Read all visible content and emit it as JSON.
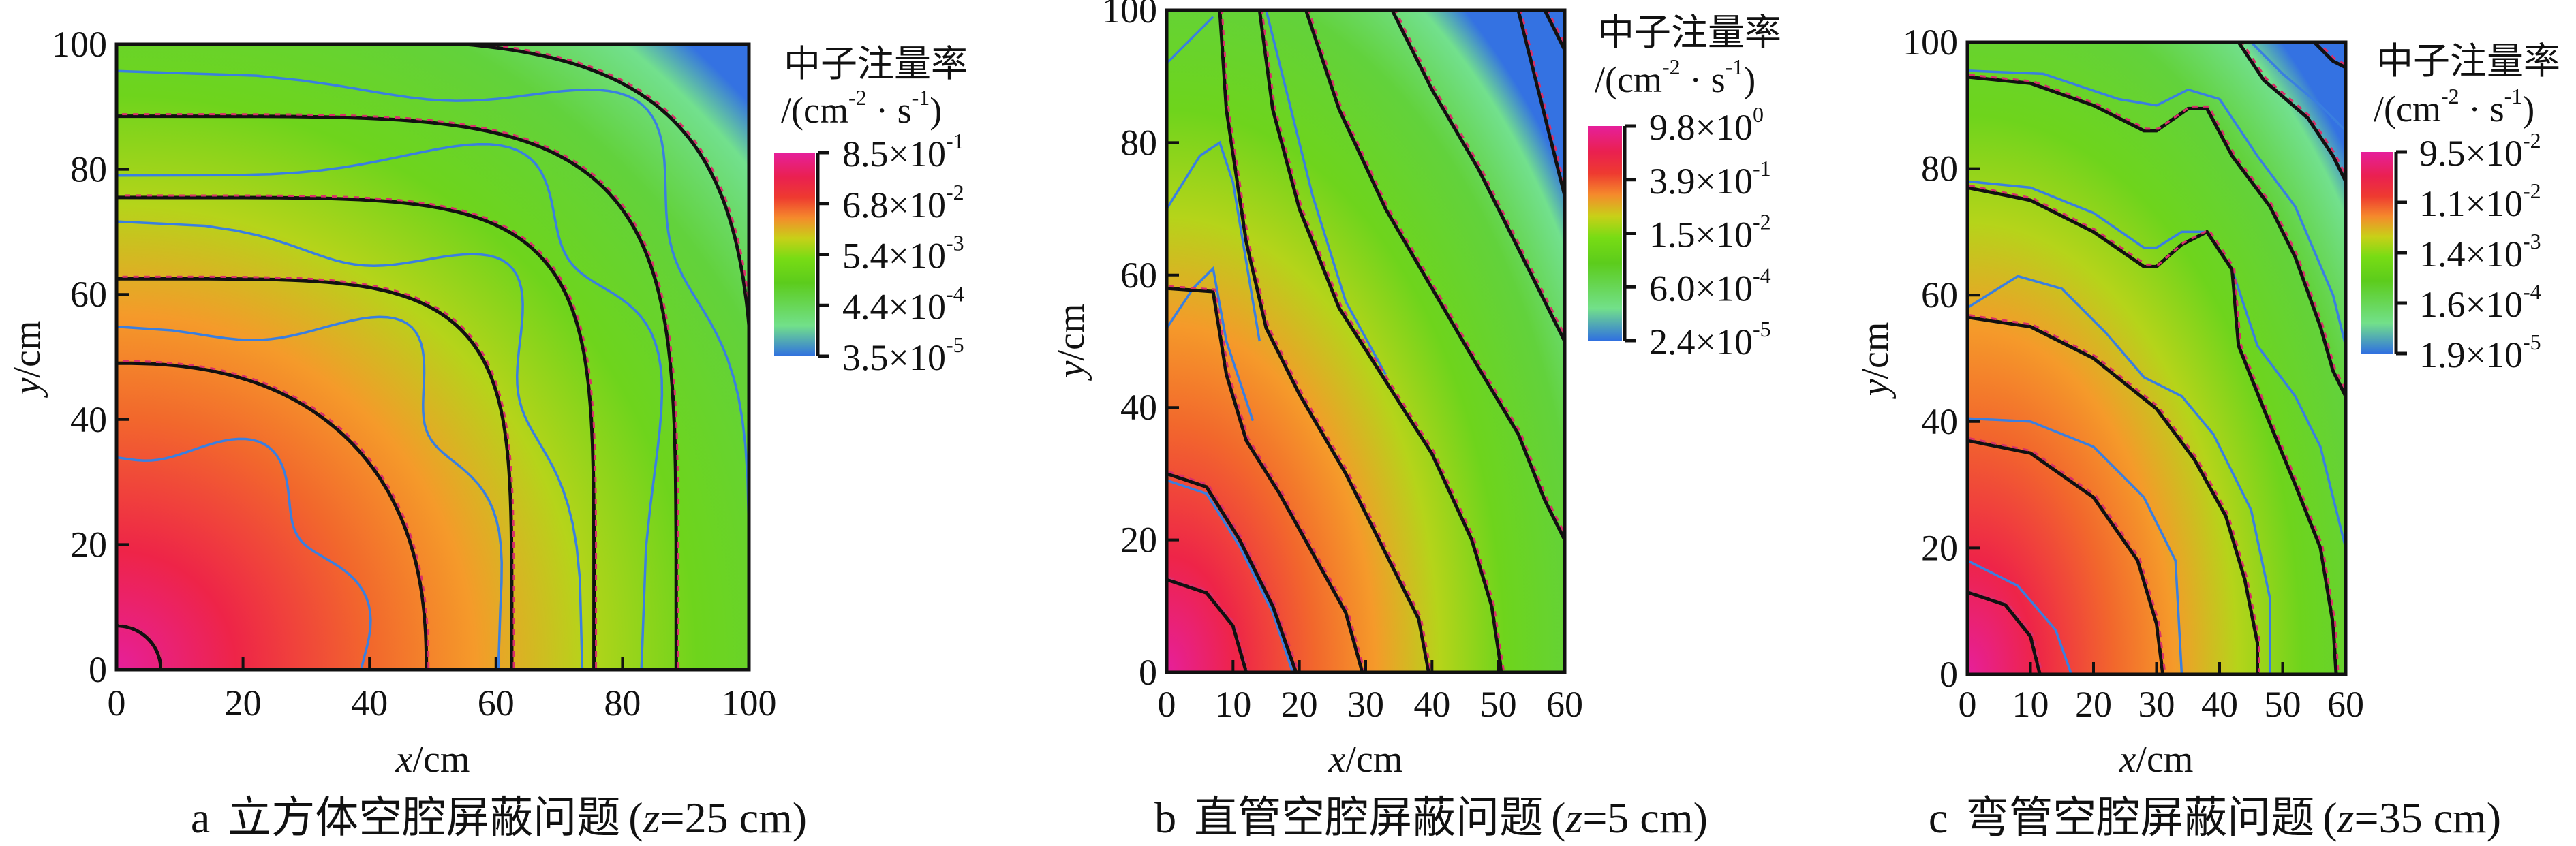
{
  "chart_data": [
    {
      "type": "heatmap",
      "panel": "a",
      "caption": {
        "letter": "a",
        "title": "立方体空腔屏蔽问题",
        "open": "(",
        "var": "z",
        "rest": "=25 cm)"
      },
      "xlabel": {
        "var": "x",
        "unit": "/cm"
      },
      "ylabel": {
        "var": "y",
        "unit": "/cm"
      },
      "xlim": [
        0,
        100
      ],
      "ylim": [
        0,
        100
      ],
      "xticks": [
        "0",
        "20",
        "40",
        "60",
        "80",
        "100"
      ],
      "yticks": [
        "0",
        "20",
        "40",
        "60",
        "80",
        "100"
      ],
      "colorbar": {
        "title": "中子注量率",
        "unit": {
          "pre": "/(cm",
          "e1": "-2",
          "mid": " · s",
          "e2": "-1",
          "post": ")"
        },
        "ticks": [
          {
            "m": "8.5×10",
            "e": "-1"
          },
          {
            "m": "6.8×10",
            "e": "-2"
          },
          {
            "m": "5.4×10",
            "e": "-3"
          },
          {
            "m": "4.4×10",
            "e": "-4"
          },
          {
            "m": "3.5×10",
            "e": "-5"
          }
        ]
      },
      "color_scale": [
        "#e61f9b",
        "#ee2448",
        "#f2682c",
        "#f59a2a",
        "#b5d41a",
        "#6ed41c",
        "#62d23c",
        "#72e08e",
        "#3472e2"
      ]
    },
    {
      "type": "heatmap",
      "panel": "b",
      "caption": {
        "letter": "b",
        "title": "直管空腔屏蔽问题",
        "open": "(",
        "var": "z",
        "rest": "=5 cm)"
      },
      "xlabel": {
        "var": "x",
        "unit": "/cm"
      },
      "ylabel": {
        "var": "y",
        "unit": "/cm"
      },
      "xlim": [
        0,
        60
      ],
      "ylim": [
        0,
        100
      ],
      "xticks": [
        "0",
        "10",
        "20",
        "30",
        "40",
        "50",
        "60"
      ],
      "yticks": [
        "0",
        "20",
        "40",
        "60",
        "80",
        "100"
      ],
      "colorbar": {
        "title": "中子注量率",
        "unit": {
          "pre": "/(cm",
          "e1": "-2",
          "mid": " · s",
          "e2": "-1",
          "post": ")"
        },
        "ticks": [
          {
            "m": "9.8×10",
            "e": "0"
          },
          {
            "m": "3.9×10",
            "e": "-1"
          },
          {
            "m": "1.5×10",
            "e": "-2"
          },
          {
            "m": "6.0×10",
            "e": "-4"
          },
          {
            "m": "2.4×10",
            "e": "-5"
          }
        ]
      },
      "color_scale": [
        "#e61f9b",
        "#ee2448",
        "#f2682c",
        "#f59a2a",
        "#b5d41a",
        "#6ed41c",
        "#62d23c",
        "#72e08e",
        "#3472e2"
      ]
    },
    {
      "type": "heatmap",
      "panel": "c",
      "caption": {
        "letter": "c",
        "title": "弯管空腔屏蔽问题",
        "open": "(",
        "var": "z",
        "rest": "=35 cm)"
      },
      "xlabel": {
        "var": "x",
        "unit": "/cm"
      },
      "ylabel": {
        "var": "y",
        "unit": "/cm"
      },
      "xlim": [
        0,
        60
      ],
      "ylim": [
        0,
        100
      ],
      "xticks": [
        "0",
        "10",
        "20",
        "30",
        "40",
        "50",
        "60"
      ],
      "yticks": [
        "0",
        "20",
        "40",
        "60",
        "80",
        "100"
      ],
      "colorbar": {
        "title": "中子注量率",
        "unit": {
          "pre": "/(cm",
          "e1": "-2",
          "mid": " · s",
          "e2": "-1",
          "post": ")"
        },
        "ticks": [
          {
            "m": "9.5×10",
            "e": "-2"
          },
          {
            "m": "1.1×10",
            "e": "-2"
          },
          {
            "m": "1.4×10",
            "e": "-3"
          },
          {
            "m": "1.6×10",
            "e": "-4"
          },
          {
            "m": "1.9×10",
            "e": "-5"
          }
        ]
      },
      "color_scale": [
        "#e61f9b",
        "#ee2448",
        "#f2682c",
        "#f59a2a",
        "#b5d41a",
        "#6ed41c",
        "#62d23c",
        "#72e08e",
        "#3472e2"
      ]
    }
  ]
}
